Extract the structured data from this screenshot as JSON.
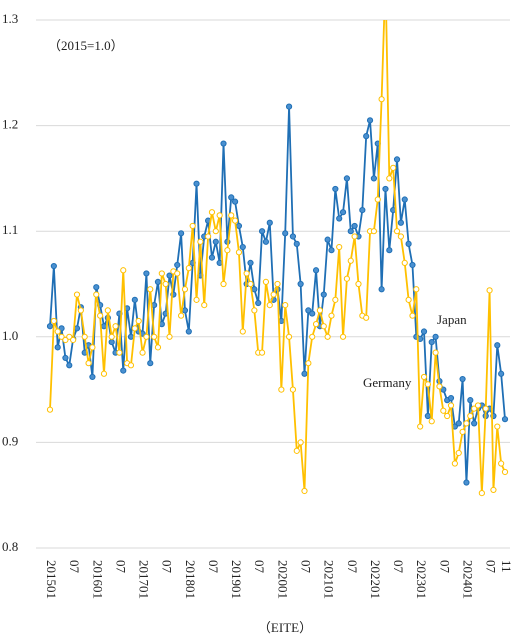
{
  "chart_data": {
    "type": "line",
    "annotation": "（2015=1.0）",
    "x_label": "（EITE）",
    "categories": [
      "201501",
      null,
      null,
      null,
      null,
      null,
      "07",
      null,
      null,
      null,
      null,
      null,
      "201601",
      null,
      null,
      null,
      null,
      null,
      "07",
      null,
      null,
      null,
      null,
      null,
      "201701",
      null,
      null,
      null,
      null,
      null,
      "07",
      null,
      null,
      null,
      null,
      null,
      "201801",
      null,
      null,
      null,
      null,
      null,
      "07",
      null,
      null,
      null,
      null,
      null,
      "201901",
      null,
      null,
      null,
      null,
      null,
      "07",
      null,
      null,
      null,
      null,
      null,
      "202001",
      null,
      null,
      null,
      null,
      null,
      "07",
      null,
      null,
      null,
      null,
      null,
      "202101",
      null,
      null,
      null,
      null,
      null,
      "07",
      null,
      null,
      null,
      null,
      null,
      "202201",
      null,
      null,
      null,
      null,
      null,
      "07",
      null,
      null,
      null,
      null,
      null,
      "202301",
      null,
      null,
      null,
      null,
      null,
      "07",
      null,
      null,
      null,
      null,
      null,
      "202401",
      null,
      null,
      null,
      null,
      null,
      "07",
      null,
      null,
      null,
      "11"
    ],
    "series": [
      {
        "name": "Japan",
        "color": "#1f6fb5",
        "marker_fill": "#4a90d0",
        "values": [
          1.01,
          1.067,
          0.99,
          1.008,
          0.98,
          0.973,
          0.998,
          1.008,
          1.028,
          0.985,
          0.992,
          0.962,
          1.047,
          1.03,
          1.01,
          1.018,
          0.995,
          0.985,
          1.022,
          0.968,
          1.027,
          1.0,
          1.035,
          1.005,
          1.003,
          1.06,
          0.975,
          1.03,
          1.052,
          1.012,
          1.022,
          1.058,
          1.04,
          1.068,
          1.098,
          1.025,
          1.005,
          1.07,
          1.145,
          1.058,
          1.095,
          1.11,
          1.075,
          1.09,
          1.07,
          1.183,
          1.09,
          1.132,
          1.128,
          1.105,
          1.085,
          1.05,
          1.07,
          1.045,
          1.032,
          1.1,
          1.09,
          1.108,
          1.035,
          1.045,
          1.015,
          1.098,
          1.218,
          1.095,
          1.088,
          1.05,
          0.965,
          1.025,
          1.022,
          1.063,
          1.01,
          1.04,
          1.092,
          1.082,
          1.14,
          1.112,
          1.118,
          1.15,
          1.1,
          1.105,
          1.095,
          1.12,
          1.19,
          1.205,
          1.15,
          1.183,
          1.045,
          1.14,
          1.082,
          1.12,
          1.168,
          1.108,
          1.13,
          1.088,
          1.068,
          1.0,
          0.998,
          1.005,
          0.925,
          0.995,
          1.0,
          0.958,
          0.95,
          0.94,
          0.942,
          0.915,
          0.918,
          0.96,
          0.862,
          0.94,
          0.918,
          0.932,
          0.935,
          0.925,
          0.932,
          0.925,
          0.992,
          0.965,
          0.922
        ]
      },
      {
        "name": "Germany",
        "color": "#ffc000",
        "marker_fill": "#ffffff",
        "values": [
          0.931,
          1.015,
          1.005,
          1.0,
          0.997,
          1.0,
          0.997,
          1.04,
          1.025,
          1.0,
          0.975,
          0.99,
          1.04,
          1.02,
          0.965,
          1.025,
          1.0,
          1.01,
          0.985,
          1.063,
          0.975,
          0.973,
          1.008,
          1.015,
          0.985,
          1.0,
          1.045,
          1.0,
          0.99,
          1.06,
          1.05,
          1.0,
          1.062,
          1.06,
          1.02,
          1.045,
          1.065,
          1.105,
          1.035,
          1.09,
          1.03,
          1.095,
          1.118,
          1.1,
          1.115,
          1.05,
          1.082,
          1.115,
          1.11,
          1.08,
          1.005,
          1.06,
          1.05,
          1.025,
          0.985,
          0.985,
          1.052,
          1.03,
          1.04,
          1.05,
          0.95,
          1.03,
          1.0,
          0.95,
          0.892,
          0.9,
          0.854,
          0.975,
          1.0,
          1.012,
          1.025,
          1.01,
          1.0,
          1.02,
          1.035,
          1.085,
          1.0,
          1.055,
          1.072,
          1.095,
          1.05,
          1.02,
          1.018,
          1.1,
          1.1,
          1.13,
          1.225,
          1.34,
          1.15,
          1.16,
          1.1,
          1.095,
          1.07,
          1.035,
          1.02,
          1.045,
          0.915,
          0.962,
          0.955,
          0.92,
          0.985,
          0.953,
          0.93,
          0.925,
          0.935,
          0.88,
          0.89,
          0.91,
          0.918,
          0.925,
          0.932,
          0.935,
          0.852,
          0.932,
          1.044,
          0.855,
          0.915,
          0.88,
          0.872
        ]
      }
    ],
    "ylim": [
      0.8,
      1.3
    ],
    "yticks": [
      0.8,
      0.9,
      {
        "value": 1,
        "label": "1.0"
      },
      1.1,
      1.2,
      1.3
    ],
    "grid": true
  }
}
